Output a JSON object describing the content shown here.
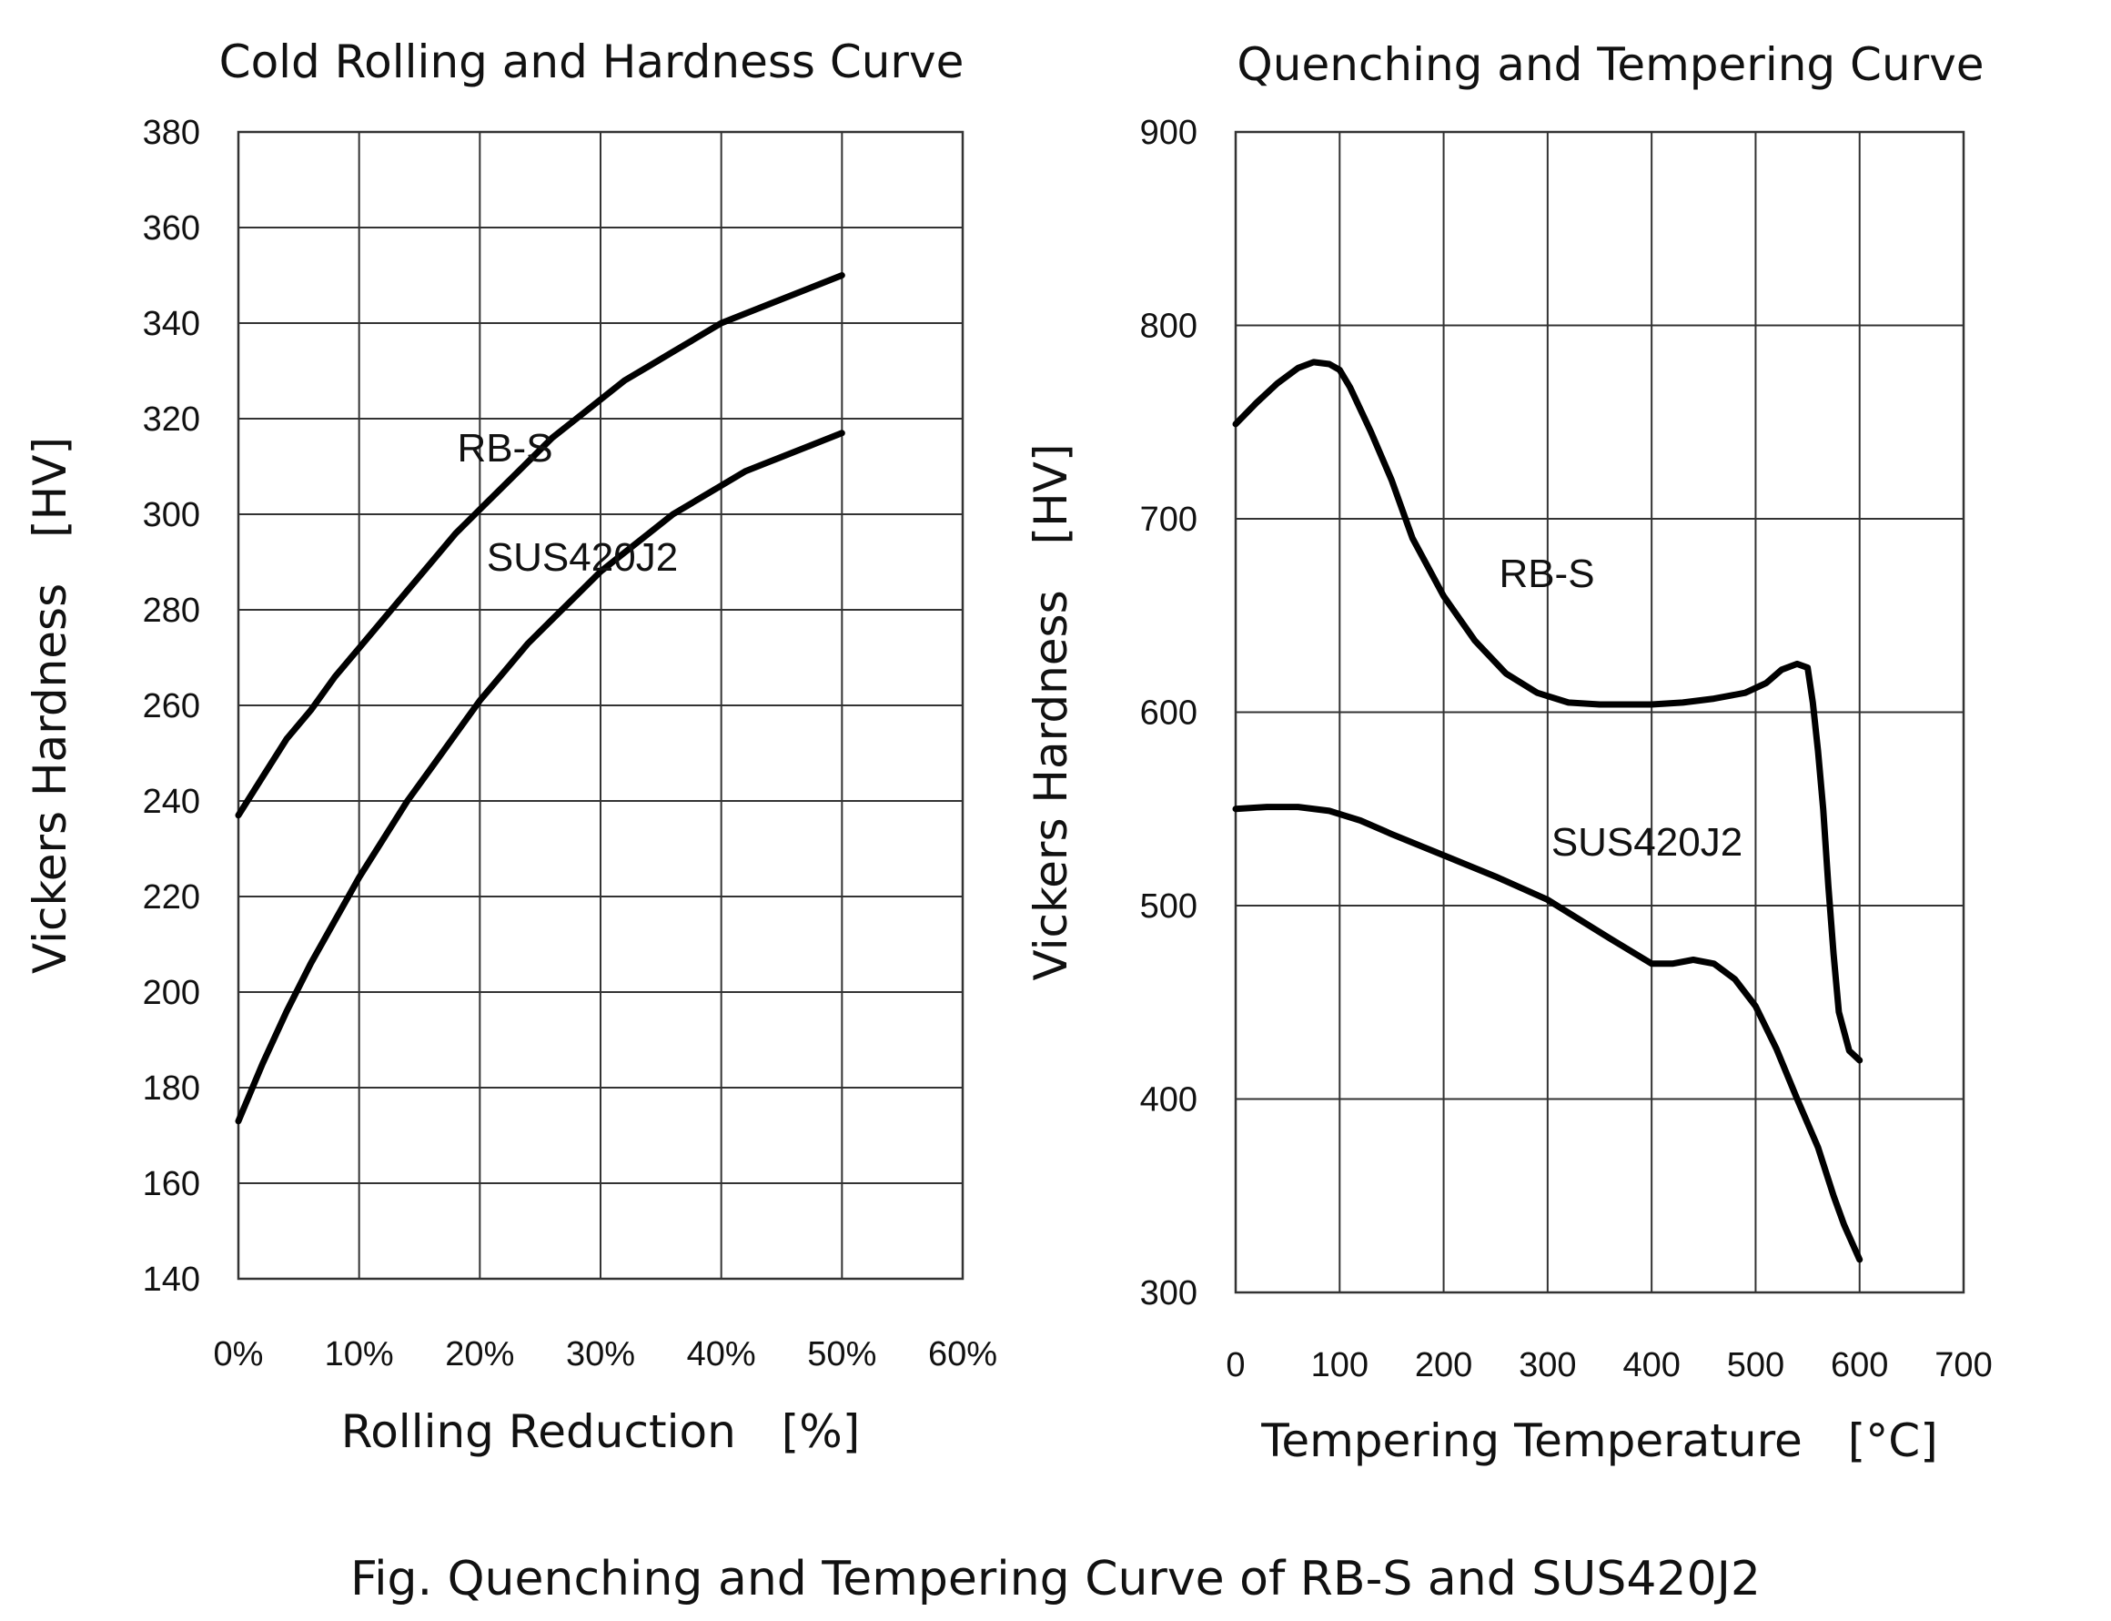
{
  "caption": "Fig. Quenching and Tempering Curve of RB-S and SUS420J2",
  "chart_data": [
    {
      "type": "line",
      "title": "Cold Rolling and Hardness Curve",
      "xlabel": "Rolling Reduction　[%]",
      "ylabel": "Vickers Hardness　[HV]",
      "xlim": [
        0,
        60
      ],
      "ylim": [
        140,
        380
      ],
      "grid": true,
      "x_ticks": [
        0,
        10,
        20,
        30,
        40,
        50,
        60
      ],
      "x_tick_labels": [
        "0%",
        "10%",
        "20%",
        "30%",
        "40%",
        "50%",
        "60%"
      ],
      "y_ticks": [
        140,
        160,
        180,
        200,
        220,
        240,
        260,
        280,
        300,
        320,
        340,
        360,
        380
      ],
      "y_tick_labels": [
        "140",
        "160",
        "180",
        "200",
        "220",
        "240",
        "260",
        "280",
        "300",
        "320",
        "340",
        "360",
        "380"
      ],
      "series": [
        {
          "name": "RB-S",
          "x": [
            0,
            2,
            4,
            6,
            8,
            10,
            12,
            14,
            16,
            18,
            20,
            22,
            24,
            26,
            28,
            30,
            32,
            34,
            36,
            38,
            40,
            42,
            44,
            46,
            48,
            50
          ],
          "y": [
            237,
            245,
            253,
            259,
            266,
            272,
            278,
            284,
            290,
            296,
            301,
            306,
            311,
            316,
            320,
            324,
            328,
            331,
            334,
            337,
            340,
            342,
            344,
            346,
            348,
            350
          ]
        },
        {
          "name": "SUS420J2",
          "x": [
            0,
            2,
            4,
            6,
            8,
            10,
            12,
            14,
            16,
            18,
            20,
            22,
            24,
            26,
            28,
            30,
            32,
            34,
            36,
            38,
            40,
            42,
            44,
            46,
            48,
            50
          ],
          "y": [
            173,
            185,
            196,
            206,
            215,
            224,
            232,
            240,
            247,
            254,
            261,
            267,
            273,
            278,
            283,
            288,
            292,
            296,
            300,
            303,
            306,
            309,
            311,
            313,
            315,
            317
          ]
        }
      ]
    },
    {
      "type": "line",
      "title": "Quenching and Tempering Curve",
      "xlabel": "Tempering Temperature　[°C]",
      "ylabel": "Vickers Hardness　[HV]",
      "xlim": [
        0,
        700
      ],
      "ylim": [
        300,
        900
      ],
      "grid": true,
      "x_ticks": [
        0,
        100,
        200,
        300,
        400,
        500,
        600,
        700
      ],
      "x_tick_labels": [
        "0",
        "100",
        "200",
        "300",
        "400",
        "500",
        "600",
        "700"
      ],
      "y_ticks": [
        300,
        400,
        500,
        600,
        700,
        800,
        900
      ],
      "y_tick_labels": [
        "300",
        "400",
        "500",
        "600",
        "700",
        "800",
        "900"
      ],
      "series": [
        {
          "name": "RB-S",
          "x": [
            0,
            20,
            40,
            60,
            75,
            90,
            100,
            110,
            130,
            150,
            170,
            200,
            230,
            260,
            290,
            320,
            350,
            400,
            430,
            460,
            490,
            510,
            525,
            540,
            550,
            555,
            560,
            565,
            570,
            575,
            580,
            590,
            600
          ],
          "y": [
            749,
            760,
            770,
            778,
            781,
            780,
            777,
            768,
            745,
            720,
            690,
            660,
            637,
            620,
            610,
            605,
            604,
            604,
            605,
            607,
            610,
            615,
            622,
            625,
            623,
            605,
            580,
            550,
            510,
            475,
            445,
            425,
            420
          ]
        },
        {
          "name": "SUS420J2",
          "x": [
            0,
            30,
            60,
            90,
            120,
            150,
            200,
            250,
            300,
            330,
            360,
            400,
            420,
            440,
            460,
            480,
            500,
            520,
            540,
            560,
            575,
            585,
            600
          ],
          "y": [
            550,
            551,
            551,
            549,
            544,
            537,
            526,
            515,
            503,
            493,
            483,
            470,
            470,
            472,
            470,
            462,
            448,
            426,
            400,
            375,
            350,
            335,
            317
          ]
        }
      ]
    }
  ]
}
